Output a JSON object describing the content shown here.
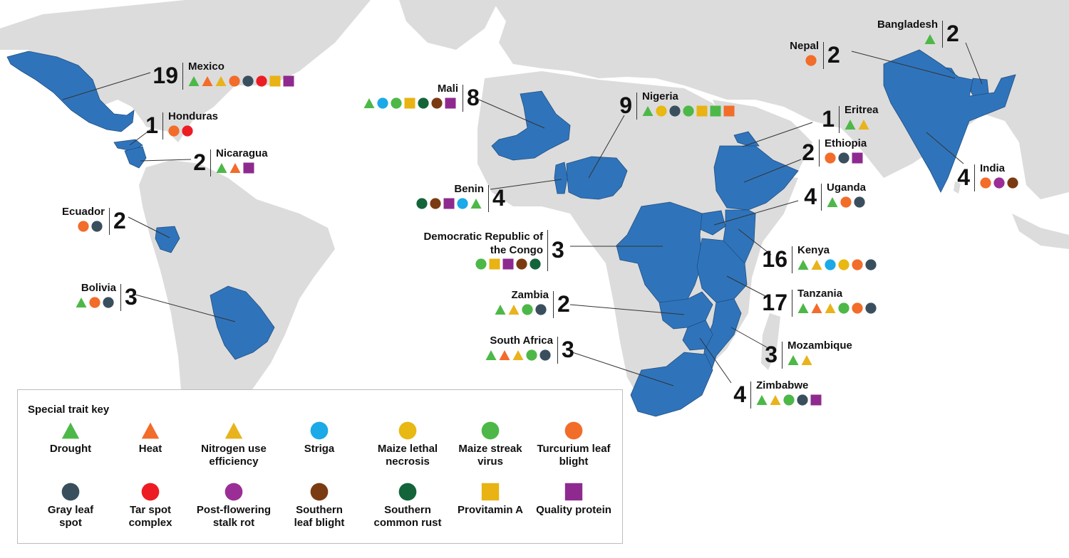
{
  "colors": {
    "land": "#dcdcdc",
    "highlight": "#2f74bb",
    "water": "#ffffff",
    "leader": "#333333"
  },
  "traits": {
    "drought": {
      "label": "Drought",
      "shape": "triangle",
      "color": "#4db848"
    },
    "heat": {
      "label": "Heat",
      "shape": "triangle",
      "color": "#f26c2a"
    },
    "nue": {
      "label": "Nitrogen use efficiency",
      "shape": "triangle",
      "color": "#e8b31c"
    },
    "striga": {
      "label": "Striga",
      "shape": "circle",
      "color": "#1ba9e8"
    },
    "mln": {
      "label": "Maize lethal necrosis",
      "shape": "circle",
      "color": "#e8b813"
    },
    "msv": {
      "label": "Maize streak virus",
      "shape": "circle",
      "color": "#4db848"
    },
    "tlb": {
      "label": "Turcurium leaf blight",
      "shape": "circle",
      "color": "#f26c2a"
    },
    "gls": {
      "label": "Gray leaf spot",
      "shape": "circle",
      "color": "#3a4f5e"
    },
    "tsc": {
      "label": "Tar spot complex",
      "shape": "circle",
      "color": "#ed1c24"
    },
    "pfsr": {
      "label": "Post-flowering stalk rot",
      "shape": "circle",
      "color": "#9b2e96"
    },
    "slb": {
      "label": "Southern leaf blight",
      "shape": "circle",
      "color": "#7a3b12"
    },
    "scr": {
      "label": "Southern common rust",
      "shape": "circle",
      "color": "#14643a"
    },
    "provA": {
      "label": "Provitamin A",
      "shape": "square",
      "color": "#e8b313"
    },
    "qp": {
      "label": "Quality protein",
      "shape": "square",
      "color": "#8e2a8f"
    }
  },
  "legend": {
    "title": "Special trait key",
    "rows": [
      [
        "drought",
        "heat",
        "nue",
        "striga",
        "mln",
        "msv",
        "tlb"
      ],
      [
        "gls",
        "tsc",
        "pfsr",
        "slb",
        "scr",
        "provA",
        "qp"
      ]
    ],
    "labels": {
      "drought": [
        "Drought"
      ],
      "heat": [
        "Heat"
      ],
      "nue": [
        "Nitrogen use",
        "efficiency"
      ],
      "striga": [
        "Striga"
      ],
      "mln": [
        "Maize lethal",
        "necrosis"
      ],
      "msv": [
        "Maize streak",
        "virus"
      ],
      "tlb": [
        "Turcurium leaf",
        "blight"
      ],
      "gls": [
        "Gray leaf",
        "spot"
      ],
      "tsc": [
        "Tar spot",
        "complex"
      ],
      "pfsr": [
        "Post-flowering",
        "stalk rot"
      ],
      "slb": [
        "Southern",
        "leaf blight"
      ],
      "scr": [
        "Southern",
        "common rust"
      ],
      "provA": [
        "Provitamin A"
      ],
      "qp": [
        "Quality protein"
      ]
    }
  },
  "countries": [
    {
      "id": "mexico",
      "name": "Mexico",
      "count": "19",
      "traits": [
        "drought",
        "heat",
        "nue",
        "tlb",
        "gls",
        "tsc",
        "provA",
        "qp"
      ]
    },
    {
      "id": "honduras",
      "name": "Honduras",
      "count": "1",
      "traits": [
        "tlb",
        "tsc"
      ]
    },
    {
      "id": "nicaragua",
      "name": "Nicaragua",
      "count": "2",
      "traits": [
        "drought",
        "heat",
        "qp"
      ]
    },
    {
      "id": "ecuador",
      "name": "Ecuador",
      "count": "2",
      "traits": [
        "tlb",
        "gls"
      ]
    },
    {
      "id": "bolivia",
      "name": "Bolivia",
      "count": "3",
      "traits": [
        "drought",
        "tlb",
        "gls"
      ]
    },
    {
      "id": "mali",
      "name": "Mali",
      "count": "8",
      "traits": [
        "drought",
        "striga",
        "msv",
        "provA",
        "scr",
        "slb",
        "qp"
      ]
    },
    {
      "id": "nigeria",
      "name": "Nigeria",
      "count": "9",
      "traits": [
        "drought",
        "mln",
        "gls",
        "msv",
        "provA",
        "provA_green",
        "provA_orange"
      ]
    },
    {
      "id": "benin",
      "name": "Benin",
      "count": "4",
      "traits": [
        "scr",
        "slb",
        "qp",
        "striga",
        "drought"
      ]
    },
    {
      "id": "drc",
      "name": "Democratic Republic of the Congo",
      "count": "3",
      "traits": [
        "msv",
        "provA",
        "qp",
        "slb",
        "scr"
      ]
    },
    {
      "id": "zambia",
      "name": "Zambia",
      "count": "2",
      "traits": [
        "drought",
        "nue",
        "msv",
        "gls"
      ]
    },
    {
      "id": "southafrica",
      "name": "South Africa",
      "count": "3",
      "traits": [
        "drought",
        "heat",
        "nue",
        "msv",
        "gls"
      ]
    },
    {
      "id": "eritrea",
      "name": "Eritrea",
      "count": "1",
      "traits": [
        "drought",
        "nue"
      ]
    },
    {
      "id": "ethiopia",
      "name": "Ethiopia",
      "count": "2",
      "traits": [
        "tlb",
        "gls",
        "qp"
      ]
    },
    {
      "id": "uganda",
      "name": "Uganda",
      "count": "4",
      "traits": [
        "drought",
        "tlb",
        "gls"
      ]
    },
    {
      "id": "kenya",
      "name": "Kenya",
      "count": "16",
      "traits": [
        "drought",
        "nue",
        "striga",
        "mln",
        "tlb",
        "gls"
      ]
    },
    {
      "id": "tanzania",
      "name": "Tanzania",
      "count": "17",
      "traits": [
        "drought",
        "heat",
        "nue",
        "msv",
        "tlb",
        "gls"
      ]
    },
    {
      "id": "mozambique",
      "name": "Mozambique",
      "count": "3",
      "traits": [
        "drought",
        "nue"
      ]
    },
    {
      "id": "zimbabwe",
      "name": "Zimbabwe",
      "count": "4",
      "traits": [
        "drought",
        "nue",
        "msv",
        "gls",
        "qp"
      ]
    },
    {
      "id": "nepal",
      "name": "Nepal",
      "count": "2",
      "traits": [
        "tlb"
      ]
    },
    {
      "id": "bangladesh",
      "name": "Bangladesh",
      "count": "2",
      "traits": [
        "drought"
      ]
    },
    {
      "id": "india",
      "name": "India",
      "count": "4",
      "traits": [
        "tlb",
        "pfsr",
        "slb"
      ]
    }
  ]
}
